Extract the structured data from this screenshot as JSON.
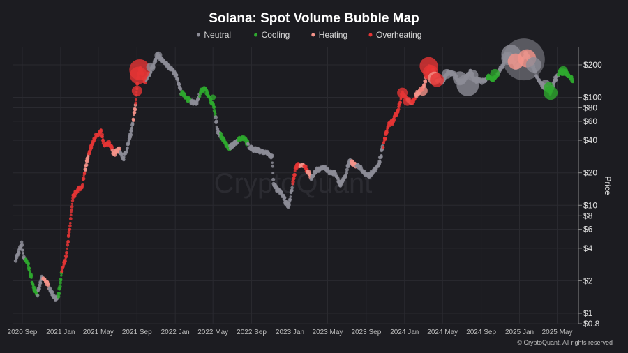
{
  "chart_data": {
    "type": "scatter",
    "title": "Solana: Spot Volume Bubble Map",
    "ylabel": "Price",
    "yscale": "log",
    "ylim": [
      0.8,
      290
    ],
    "xlim": [
      "2020-08-01",
      "2025-07-01"
    ],
    "x_tick_labels": [
      "2020 Sep",
      "2021 Jan",
      "2021 May",
      "2021 Sep",
      "2022 Jan",
      "2022 May",
      "2022 Sep",
      "2023 Jan",
      "2023 May",
      "2023 Sep",
      "2024 Jan",
      "2024 May",
      "2024 Sep",
      "2025 Jan",
      "2025 May"
    ],
    "x_tick_dates": [
      "2020-09-01",
      "2021-01-01",
      "2021-05-01",
      "2021-09-01",
      "2022-01-01",
      "2022-05-01",
      "2022-09-01",
      "2023-01-01",
      "2023-05-01",
      "2023-09-01",
      "2024-01-01",
      "2024-05-01",
      "2024-09-01",
      "2025-01-01",
      "2025-05-01"
    ],
    "y_ticks": [
      0.8,
      1,
      2,
      4,
      6,
      8,
      10,
      20,
      40,
      60,
      80,
      100,
      200
    ],
    "y_tick_labels": [
      "$0.8",
      "$1",
      "$2",
      "$4",
      "$6",
      "$8",
      "$10",
      "$20",
      "$40",
      "$60",
      "$80",
      "$100",
      "$200"
    ],
    "legend_position": "top-center",
    "grid": true,
    "series": [
      {
        "name": "Neutral",
        "color": "#8c8c96"
      },
      {
        "name": "Cooling",
        "color": "#2ea82e"
      },
      {
        "name": "Heating",
        "color": "#f4938a"
      },
      {
        "name": "Overheating",
        "color": "#e53535"
      }
    ],
    "price_path": [
      [
        "2020-08-11",
        3.2
      ],
      [
        "2020-08-20",
        3.6
      ],
      [
        "2020-08-30",
        4.4
      ],
      [
        "2020-09-05",
        3.3
      ],
      [
        "2020-09-20",
        2.8
      ],
      [
        "2020-10-05",
        1.8
      ],
      [
        "2020-10-20",
        1.5
      ],
      [
        "2020-11-01",
        2.1
      ],
      [
        "2020-11-15",
        2.0
      ],
      [
        "2020-12-01",
        1.6
      ],
      [
        "2020-12-15",
        1.35
      ],
      [
        "2020-12-25",
        1.4
      ],
      [
        "2021-01-05",
        2.4
      ],
      [
        "2021-01-20",
        3.5
      ],
      [
        "2021-02-01",
        7
      ],
      [
        "2021-02-10",
        12
      ],
      [
        "2021-02-25",
        14
      ],
      [
        "2021-03-10",
        15
      ],
      [
        "2021-03-25",
        25
      ],
      [
        "2021-04-10",
        36
      ],
      [
        "2021-04-25",
        45
      ],
      [
        "2021-05-10",
        48
      ],
      [
        "2021-05-20",
        35
      ],
      [
        "2021-06-05",
        38
      ],
      [
        "2021-06-20",
        30
      ],
      [
        "2021-07-05",
        33
      ],
      [
        "2021-07-20",
        27
      ],
      [
        "2021-08-01",
        34
      ],
      [
        "2021-08-15",
        50
      ],
      [
        "2021-08-25",
        75
      ],
      [
        "2021-09-05",
        160
      ],
      [
        "2021-09-12",
        190
      ],
      [
        "2021-09-25",
        140
      ],
      [
        "2021-10-10",
        165
      ],
      [
        "2021-10-25",
        200
      ],
      [
        "2021-11-06",
        250
      ],
      [
        "2021-11-20",
        220
      ],
      [
        "2021-12-05",
        200
      ],
      [
        "2021-12-20",
        180
      ],
      [
        "2022-01-05",
        160
      ],
      [
        "2022-01-20",
        110
      ],
      [
        "2022-02-05",
        100
      ],
      [
        "2022-02-20",
        90
      ],
      [
        "2022-03-10",
        90
      ],
      [
        "2022-03-25",
        115
      ],
      [
        "2022-04-05",
        120
      ],
      [
        "2022-04-20",
        100
      ],
      [
        "2022-05-05",
        80
      ],
      [
        "2022-05-15",
        50
      ],
      [
        "2022-06-05",
        40
      ],
      [
        "2022-06-20",
        34
      ],
      [
        "2022-07-10",
        37
      ],
      [
        "2022-07-25",
        42
      ],
      [
        "2022-08-10",
        42
      ],
      [
        "2022-08-25",
        34
      ],
      [
        "2022-09-10",
        33
      ],
      [
        "2022-09-25",
        32
      ],
      [
        "2022-10-10",
        31
      ],
      [
        "2022-10-25",
        30
      ],
      [
        "2022-11-05",
        28
      ],
      [
        "2022-11-10",
        16
      ],
      [
        "2022-11-20",
        14
      ],
      [
        "2022-12-05",
        13
      ],
      [
        "2022-12-20",
        10.5
      ],
      [
        "2022-12-29",
        9.9
      ],
      [
        "2023-01-10",
        16
      ],
      [
        "2023-01-20",
        23
      ],
      [
        "2023-02-05",
        24
      ],
      [
        "2023-02-20",
        22
      ],
      [
        "2023-03-10",
        18
      ],
      [
        "2023-03-25",
        21
      ],
      [
        "2023-04-10",
        22
      ],
      [
        "2023-04-25",
        22
      ],
      [
        "2023-05-10",
        20
      ],
      [
        "2023-05-25",
        20
      ],
      [
        "2023-06-10",
        15.5
      ],
      [
        "2023-06-25",
        18
      ],
      [
        "2023-07-10",
        26
      ],
      [
        "2023-07-25",
        24
      ],
      [
        "2023-08-10",
        23
      ],
      [
        "2023-08-25",
        20
      ],
      [
        "2023-09-10",
        19
      ],
      [
        "2023-09-25",
        21
      ],
      [
        "2023-10-10",
        23
      ],
      [
        "2023-10-25",
        36
      ],
      [
        "2023-11-10",
        55
      ],
      [
        "2023-11-25",
        60
      ],
      [
        "2023-12-10",
        75
      ],
      [
        "2023-12-25",
        110
      ],
      [
        "2024-01-10",
        95
      ],
      [
        "2024-01-25",
        90
      ],
      [
        "2024-02-10",
        110
      ],
      [
        "2024-02-25",
        115
      ],
      [
        "2024-03-10",
        150
      ],
      [
        "2024-03-18",
        190
      ],
      [
        "2024-04-01",
        180
      ],
      [
        "2024-04-15",
        140
      ],
      [
        "2024-05-01",
        140
      ],
      [
        "2024-05-20",
        170
      ],
      [
        "2024-06-05",
        165
      ],
      [
        "2024-06-25",
        140
      ],
      [
        "2024-07-10",
        145
      ],
      [
        "2024-07-28",
        175
      ],
      [
        "2024-08-10",
        145
      ],
      [
        "2024-08-25",
        145
      ],
      [
        "2024-09-10",
        140
      ],
      [
        "2024-09-25",
        155
      ],
      [
        "2024-10-10",
        145
      ],
      [
        "2024-10-25",
        170
      ],
      [
        "2024-11-10",
        200
      ],
      [
        "2024-11-22",
        245
      ],
      [
        "2024-12-05",
        235
      ],
      [
        "2024-12-20",
        190
      ],
      [
        "2025-01-05",
        210
      ],
      [
        "2025-01-19",
        255
      ],
      [
        "2025-02-01",
        225
      ],
      [
        "2025-02-15",
        190
      ],
      [
        "2025-03-01",
        145
      ],
      [
        "2025-03-15",
        130
      ],
      [
        "2025-04-01",
        120
      ],
      [
        "2025-04-10",
        110
      ],
      [
        "2025-04-25",
        148
      ],
      [
        "2025-05-10",
        170
      ],
      [
        "2025-05-25",
        175
      ],
      [
        "2025-06-05",
        160
      ],
      [
        "2025-06-20",
        145
      ]
    ],
    "regimes": [
      [
        "2020-08-01",
        "Neutral"
      ],
      [
        "2020-09-10",
        "Cooling"
      ],
      [
        "2020-10-20",
        "Neutral"
      ],
      [
        "2020-11-05",
        "Heating"
      ],
      [
        "2020-11-25",
        "Neutral"
      ],
      [
        "2020-12-25",
        "Cooling"
      ],
      [
        "2021-01-05",
        "Overheating"
      ],
      [
        "2021-03-20",
        "Heating"
      ],
      [
        "2021-04-01",
        "Overheating"
      ],
      [
        "2021-06-15",
        "Heating"
      ],
      [
        "2021-07-10",
        "Neutral"
      ],
      [
        "2021-08-20",
        "Heating"
      ],
      [
        "2021-08-28",
        "Overheating"
      ],
      [
        "2021-09-28",
        "Neutral"
      ],
      [
        "2022-01-20",
        "Cooling"
      ],
      [
        "2022-02-20",
        "Neutral"
      ],
      [
        "2022-03-20",
        "Cooling"
      ],
      [
        "2022-05-10",
        "Neutral"
      ],
      [
        "2022-05-25",
        "Cooling"
      ],
      [
        "2022-06-25",
        "Neutral"
      ],
      [
        "2022-07-20",
        "Cooling"
      ],
      [
        "2022-08-20",
        "Neutral"
      ],
      [
        "2023-01-10",
        "Overheating"
      ],
      [
        "2023-02-01",
        "Heating"
      ],
      [
        "2023-02-15",
        "Overheating"
      ],
      [
        "2023-02-25",
        "Heating"
      ],
      [
        "2023-03-10",
        "Neutral"
      ],
      [
        "2023-07-15",
        "Heating"
      ],
      [
        "2023-07-30",
        "Neutral"
      ],
      [
        "2023-10-25",
        "Overheating"
      ],
      [
        "2024-01-10",
        "Heating"
      ],
      [
        "2024-01-25",
        "Overheating"
      ],
      [
        "2024-02-05",
        "Heating"
      ],
      [
        "2024-02-20",
        "Overheating"
      ],
      [
        "2024-03-01",
        "Heating"
      ],
      [
        "2024-03-10",
        "Overheating"
      ],
      [
        "2024-04-01",
        "Heating"
      ],
      [
        "2024-04-20",
        "Neutral"
      ],
      [
        "2024-09-20",
        "Cooling"
      ],
      [
        "2024-10-25",
        "Neutral"
      ],
      [
        "2024-11-15",
        "Heating"
      ],
      [
        "2024-11-30",
        "Neutral"
      ],
      [
        "2025-01-10",
        "Heating"
      ],
      [
        "2025-02-01",
        "Neutral"
      ],
      [
        "2025-03-25",
        "Cooling"
      ],
      [
        "2025-04-15",
        "Neutral"
      ],
      [
        "2025-05-05",
        "Cooling"
      ]
    ],
    "large_bubbles": [
      {
        "date": "2021-09-10",
        "price": 180,
        "size": 3,
        "category": "Overheating"
      },
      {
        "date": "2021-09-06",
        "price": 160,
        "size": 2.5,
        "category": "Overheating"
      },
      {
        "date": "2021-09-01",
        "price": 115,
        "size": 1.5,
        "category": "Overheating"
      },
      {
        "date": "2021-10-15",
        "price": 190,
        "size": 1.3,
        "category": "Neutral"
      },
      {
        "date": "2021-11-08",
        "price": 245,
        "size": 1.1,
        "category": "Neutral"
      },
      {
        "date": "2023-12-25",
        "price": 110,
        "size": 1.5,
        "category": "Overheating"
      },
      {
        "date": "2024-01-10",
        "price": 92,
        "size": 1.3,
        "category": "Overheating"
      },
      {
        "date": "2024-02-28",
        "price": 115,
        "size": 1.4,
        "category": "Heating"
      },
      {
        "date": "2024-03-18",
        "price": 195,
        "size": 2.6,
        "category": "Overheating"
      },
      {
        "date": "2024-03-24",
        "price": 170,
        "size": 2.2,
        "category": "Overheating"
      },
      {
        "date": "2024-04-05",
        "price": 150,
        "size": 1.9,
        "category": "Heating"
      },
      {
        "date": "2024-04-13",
        "price": 145,
        "size": 2.0,
        "category": "Overheating"
      },
      {
        "date": "2024-05-15",
        "price": 165,
        "size": 1.4,
        "category": "Neutral"
      },
      {
        "date": "2024-06-25",
        "price": 150,
        "size": 2.0,
        "category": "Neutral"
      },
      {
        "date": "2024-07-20",
        "price": 130,
        "size": 3.2,
        "category": "Neutral"
      },
      {
        "date": "2024-08-05",
        "price": 160,
        "size": 1.6,
        "category": "Neutral"
      },
      {
        "date": "2024-10-15",
        "price": 165,
        "size": 1.4,
        "category": "Cooling"
      },
      {
        "date": "2024-11-25",
        "price": 230,
        "size": 1.9,
        "category": "Neutral"
      },
      {
        "date": "2025-01-15",
        "price": 225,
        "size": 6.0,
        "category": "Neutral"
      },
      {
        "date": "2024-12-05",
        "price": 250,
        "size": 2.8,
        "category": "Neutral"
      },
      {
        "date": "2024-12-20",
        "price": 215,
        "size": 2.3,
        "category": "Heating"
      },
      {
        "date": "2025-01-25",
        "price": 230,
        "size": 2.6,
        "category": "Heating"
      },
      {
        "date": "2025-02-15",
        "price": 200,
        "size": 2.2,
        "category": "Neutral"
      },
      {
        "date": "2025-03-25",
        "price": 130,
        "size": 1.5,
        "category": "Neutral"
      },
      {
        "date": "2025-04-10",
        "price": 110,
        "size": 2.0,
        "category": "Cooling"
      },
      {
        "date": "2025-04-05",
        "price": 125,
        "size": 1.4,
        "category": "Cooling"
      },
      {
        "date": "2025-05-20",
        "price": 175,
        "size": 1.4,
        "category": "Cooling"
      },
      {
        "date": "2022-05-01",
        "price": 100,
        "size": 0.8,
        "category": "Cooling"
      }
    ]
  },
  "watermark": "CryptoQuant",
  "credit": "© CryptoQuant. All rights reserved"
}
